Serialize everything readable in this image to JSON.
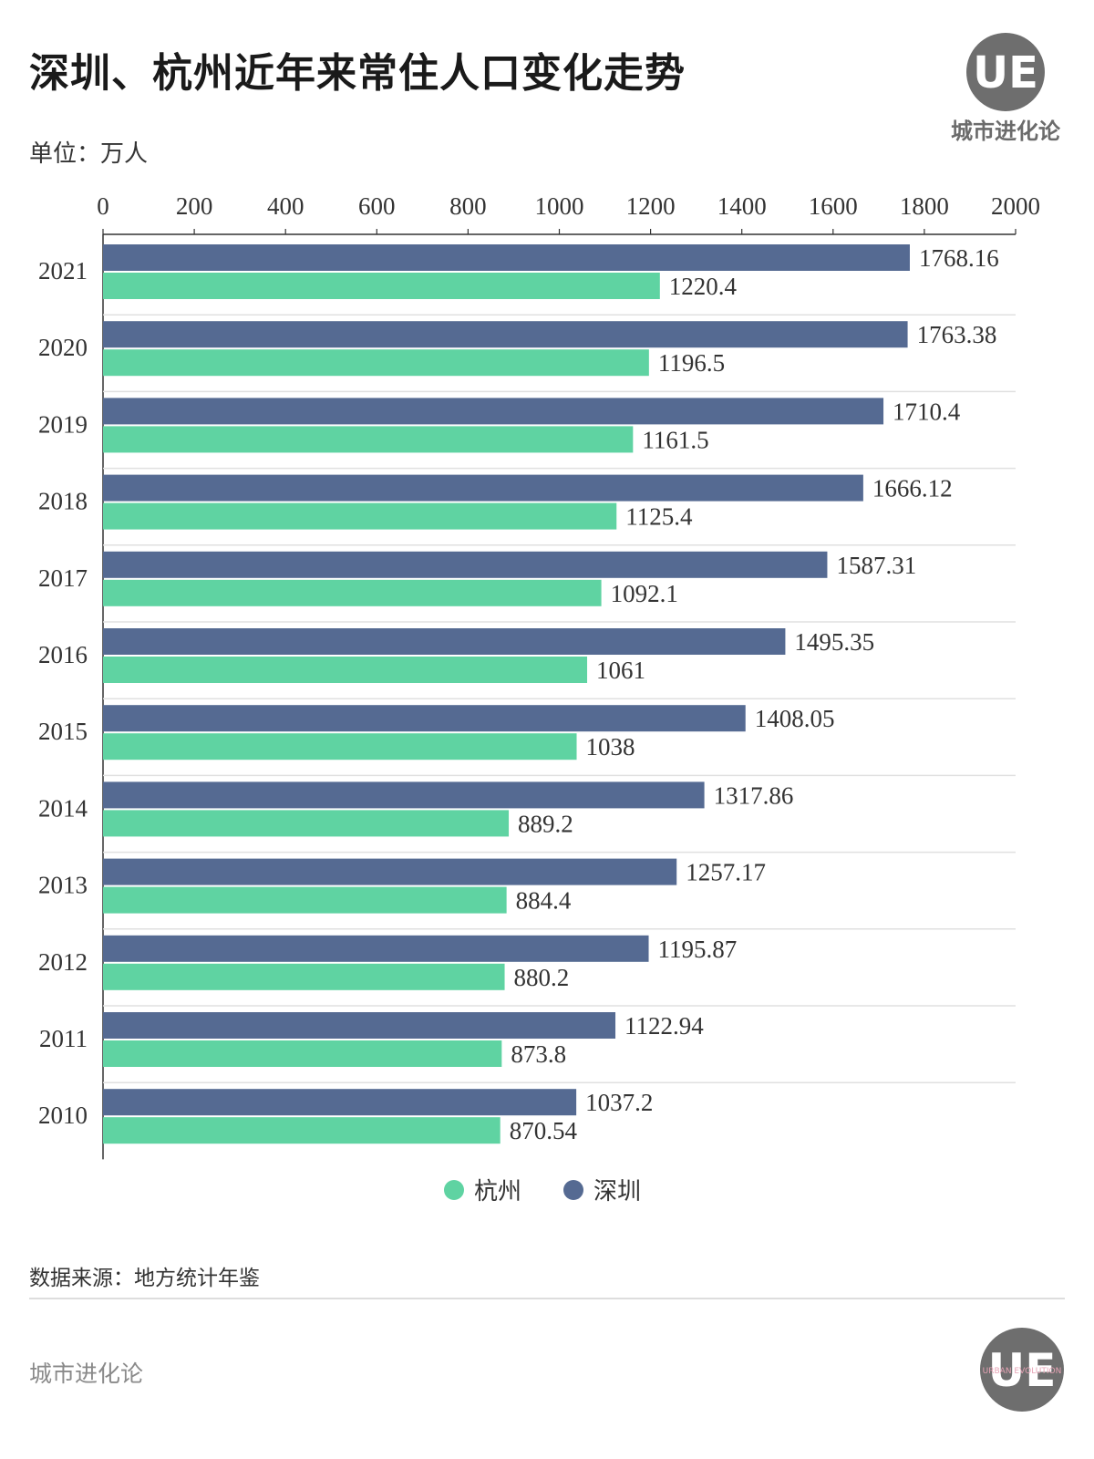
{
  "header": {
    "title": "深圳、杭州近年来常住人口变化走势",
    "unit": "单位：万人"
  },
  "brand": {
    "logo_letters": "UE",
    "name_top": "城市进化论",
    "name_footer": "城市进化论",
    "logo_bottom_small_text": "URBAN EVOLUTION"
  },
  "source": "数据来源：地方统计年鉴",
  "colors": {
    "hangzhou": "#5fd3a2",
    "shenzhen": "#556a92",
    "logo_gray": "#6e6e6e"
  },
  "chart_data": {
    "type": "bar",
    "orientation": "horizontal",
    "categories": [
      "2021",
      "2020",
      "2019",
      "2018",
      "2017",
      "2016",
      "2015",
      "2014",
      "2013",
      "2012",
      "2011",
      "2010"
    ],
    "series": [
      {
        "name": "深圳",
        "color": "#556a92",
        "values": [
          1768.16,
          1763.38,
          1710.4,
          1666.12,
          1587.31,
          1495.35,
          1408.05,
          1317.86,
          1257.17,
          1195.87,
          1122.94,
          1037.2
        ],
        "labels": [
          "1768.16",
          "1763.38",
          "1710.4",
          "1666.12",
          "1587.31",
          "1495.35",
          "1408.05",
          "1317.86",
          "1257.17",
          "1195.87",
          "1122.94",
          "1037.2"
        ]
      },
      {
        "name": "杭州",
        "color": "#5fd3a2",
        "values": [
          1220.4,
          1196.5,
          1161.5,
          1125.4,
          1092.1,
          1061,
          1038,
          889.2,
          884.4,
          880.2,
          873.8,
          870.54
        ],
        "labels": [
          "1220.4",
          "1196.5",
          "1161.5",
          "1125.4",
          "1092.1",
          "1061",
          "1038",
          "889.2",
          "884.4",
          "880.2",
          "873.8",
          "870.54"
        ]
      }
    ],
    "xlim": [
      0,
      2000
    ],
    "xticks": [
      "0",
      "200",
      "400",
      "600",
      "800",
      "1000",
      "1200",
      "1400",
      "1600",
      "1800",
      "2000"
    ],
    "axis_position": "top",
    "grid": true,
    "legend_order": [
      "杭州",
      "深圳"
    ],
    "legend_position": "bottom-center"
  }
}
